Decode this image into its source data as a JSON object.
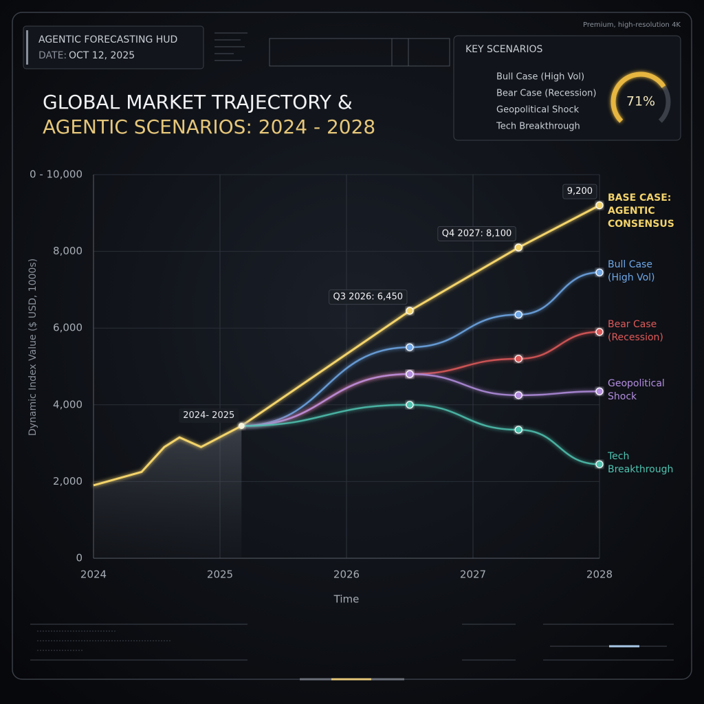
{
  "hud": {
    "title": "AGENTIC FORECASTING HUD",
    "date_label": "DATE:",
    "date": "OCT 12, 2025",
    "note": "Premium, high-resolution 4K"
  },
  "chart_data": {
    "type": "line",
    "title": "GLOBAL MARKET TRAJECTORY &",
    "subtitle": "AGENTIC SCENARIOS: 2024 - 2028",
    "y_label": "Dynamic Index Value ($ USD, 1000s)",
    "x_label": "Time",
    "xlim": [
      2024,
      2028
    ],
    "xticks": [
      2024,
      2025,
      2026,
      2027,
      2028
    ],
    "ylim": [
      0,
      10000
    ],
    "yticks": [
      0,
      {
        "value": 2000,
        "label": "2,000"
      },
      {
        "value": 4000,
        "label": "4,000"
      },
      {
        "value": 6000,
        "label": "6,000"
      },
      {
        "value": 8000,
        "label": "8,000"
      },
      {
        "value": 10000,
        "label": "0 - 10,000"
      }
    ],
    "grid": true,
    "series": [
      {
        "name": "BASE CASE: AGENTIC CONSENSUS",
        "color": "#f3d36b",
        "x": [
          2024,
          2024.38,
          2024.56,
          2024.68,
          2024.85,
          2025.17,
          2026.5,
          2027.36,
          2028
        ],
        "values": [
          1900,
          2250,
          2900,
          3150,
          2900,
          3450,
          6450,
          8100,
          9200
        ],
        "value_labels": [
          null,
          null,
          null,
          null,
          null,
          null,
          "Q3 2026: 6,450",
          "Q4 2027: 8,100",
          "9,200"
        ]
      },
      {
        "name": "Bull Case (High Vol)",
        "color": "#6fa8e8",
        "x": [
          2025.17,
          2026.5,
          2027.36,
          2028
        ],
        "values": [
          3450,
          5500,
          6350,
          7450
        ]
      },
      {
        "name": "Bear Case (Recession)",
        "color": "#e05a5a",
        "x": [
          2025.17,
          2026.5,
          2027.36,
          2028
        ],
        "values": [
          3450,
          4800,
          5200,
          5900
        ]
      },
      {
        "name": "Geopolitical Shock",
        "color": "#b48ee0",
        "x": [
          2025.17,
          2026.5,
          2027.36,
          2028
        ],
        "values": [
          3450,
          4800,
          4250,
          4350
        ]
      },
      {
        "name": "Tech Breakthrough",
        "color": "#4fc3b0",
        "x": [
          2025.17,
          2026.5,
          2027.36,
          2028
        ],
        "values": [
          3450,
          4000,
          3350,
          2450
        ]
      }
    ],
    "annotations": [
      {
        "text": "2024- 2025",
        "x": 2025.17,
        "y": 3450
      }
    ],
    "legend": {
      "title": "KEY SCENARIOS",
      "entries": [
        {
          "name": "Bull Case (High Vol)",
          "color": "#f3d36b"
        },
        {
          "name": "Bear Case (Recession)",
          "color": "#5aa0e8"
        },
        {
          "name": "Geopolitical Shock",
          "color": "#e05a5a"
        },
        {
          "name": "Tech Breakthrough",
          "color": "#a57ddb"
        }
      ]
    },
    "gauge": {
      "value": 71,
      "label": "71%"
    }
  }
}
